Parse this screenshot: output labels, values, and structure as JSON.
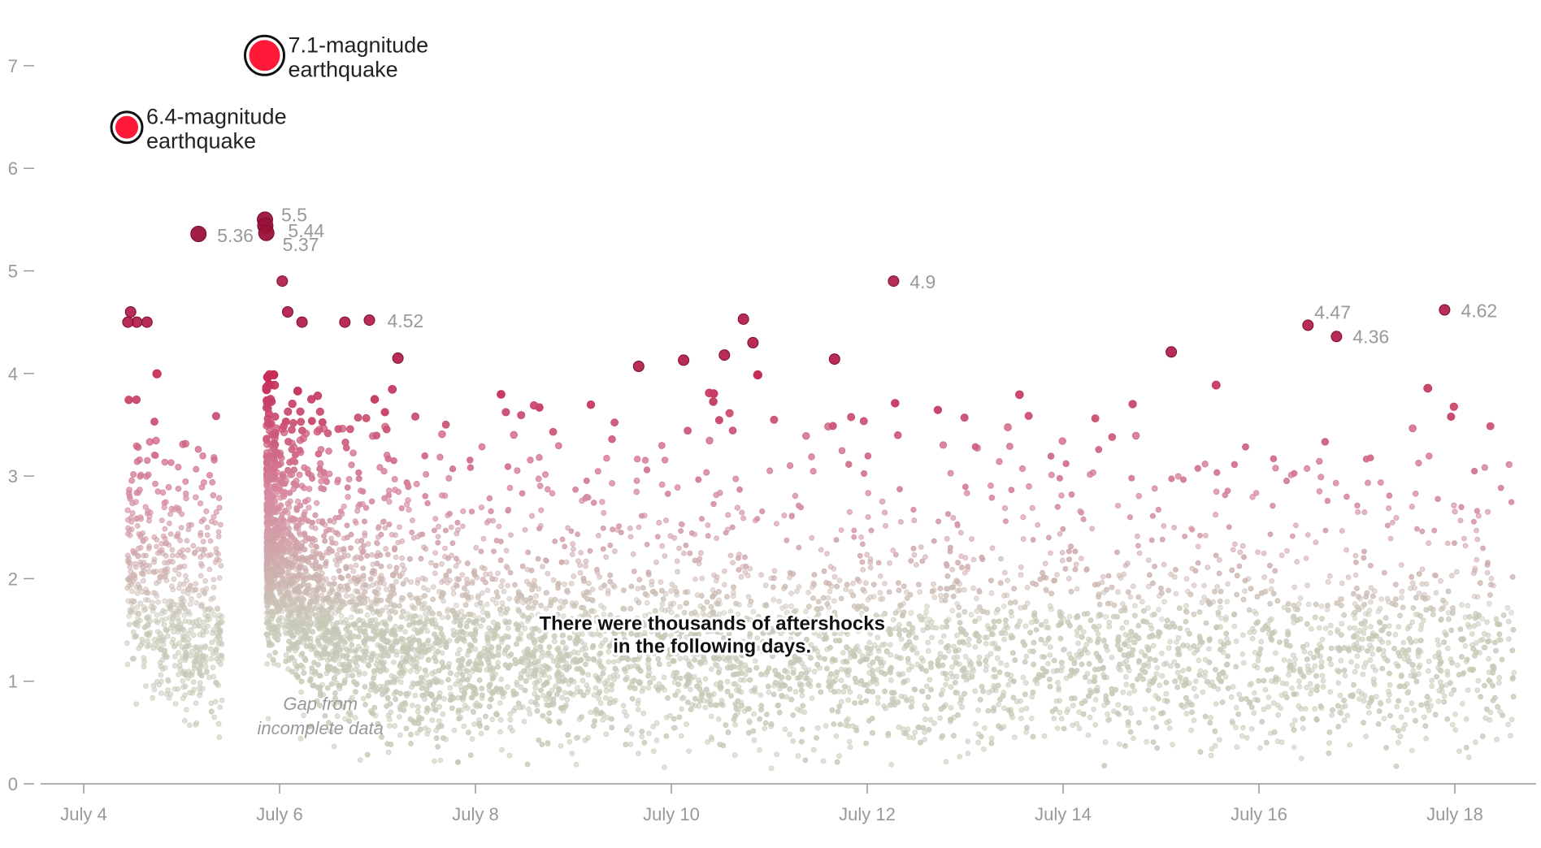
{
  "chart_data": {
    "type": "scatter",
    "title": "",
    "xlabel": "",
    "ylabel": "",
    "x_axis": {
      "min_date": "2019-07-03T20:00",
      "max_date": "2019-07-18T14:00",
      "ticks": [
        {
          "date": "2019-07-04",
          "label": "July 4"
        },
        {
          "date": "2019-07-06",
          "label": "July 6"
        },
        {
          "date": "2019-07-08",
          "label": "July 8"
        },
        {
          "date": "2019-07-10",
          "label": "July 10"
        },
        {
          "date": "2019-07-12",
          "label": "July 12"
        },
        {
          "date": "2019-07-14",
          "label": "July 14"
        },
        {
          "date": "2019-07-16",
          "label": "July 16"
        },
        {
          "date": "2019-07-18",
          "label": "July 18"
        }
      ]
    },
    "y_axis": {
      "min": 0,
      "max": 7,
      "ticks": [
        0,
        1,
        2,
        3,
        4,
        5,
        6,
        7
      ],
      "tick_labels": [
        "0",
        "1",
        "2",
        "3",
        "4",
        "5",
        "6",
        "7"
      ]
    },
    "color_scale": {
      "low": "#c9c9b8",
      "mid": "#d68aa0",
      "high": "#c42a55",
      "max": "#ff1a3a",
      "max_stroke": "#111111"
    },
    "main_shocks": [
      {
        "date": "2019-07-04T10:33",
        "magnitude": 6.4,
        "label_line1": "6.4-magnitude",
        "label_line2": "earthquake"
      },
      {
        "date": "2019-07-05T20:19",
        "magnitude": 7.1,
        "label_line1": "7.1-magnitude",
        "label_line2": "earthquake"
      }
    ],
    "labeled_aftershocks": [
      {
        "date": "2019-07-05T04:07",
        "magnitude": 5.36,
        "label": "5.36"
      },
      {
        "date": "2019-07-05T20:25",
        "magnitude": 5.5,
        "label": "5.5"
      },
      {
        "date": "2019-07-05T20:30",
        "magnitude": 5.44,
        "label": "5.44"
      },
      {
        "date": "2019-07-05T20:45",
        "magnitude": 5.37,
        "label": "5.37"
      },
      {
        "date": "2019-07-06T22:00",
        "magnitude": 4.52,
        "label": "4.52"
      },
      {
        "date": "2019-07-12T06:27",
        "magnitude": 4.9,
        "label": "4.9"
      },
      {
        "date": "2019-07-16T12:00",
        "magnitude": 4.47,
        "label": "4.47"
      },
      {
        "date": "2019-07-16T19:00",
        "magnitude": 4.36,
        "label": "4.36"
      },
      {
        "date": "2019-07-17T21:30",
        "magnitude": 4.62,
        "label": "4.62"
      }
    ],
    "other_notable_aftershocks": [
      {
        "date": "2019-07-04T11:30",
        "magnitude": 4.6
      },
      {
        "date": "2019-07-04T13:00",
        "magnitude": 4.5
      },
      {
        "date": "2019-07-04T10:50",
        "magnitude": 4.5
      },
      {
        "date": "2019-07-04T15:30",
        "magnitude": 4.5
      },
      {
        "date": "2019-07-06T00:40",
        "magnitude": 4.9
      },
      {
        "date": "2019-07-06T02:00",
        "magnitude": 4.6
      },
      {
        "date": "2019-07-06T05:30",
        "magnitude": 4.5
      },
      {
        "date": "2019-07-06T16:00",
        "magnitude": 4.5
      },
      {
        "date": "2019-07-10T17:40",
        "magnitude": 4.53
      },
      {
        "date": "2019-07-10T13:00",
        "magnitude": 4.18
      },
      {
        "date": "2019-07-10T20:00",
        "magnitude": 4.3
      },
      {
        "date": "2019-07-11T16:00",
        "magnitude": 4.14
      },
      {
        "date": "2019-07-10T03:00",
        "magnitude": 4.13
      },
      {
        "date": "2019-07-09T16:00",
        "magnitude": 4.07
      },
      {
        "date": "2019-07-07T05:00",
        "magnitude": 4.15
      },
      {
        "date": "2019-07-15T02:30",
        "magnitude": 4.21
      }
    ],
    "annotations": [
      {
        "id": "thousands",
        "line1": "There were thousands of aftershocks",
        "line2": "in the following days.",
        "date": "2019-07-10T10:00",
        "magnitude": 1.5
      },
      {
        "id": "gap",
        "line1": "Gap from",
        "line2": "incomplete data",
        "date": "2019-07-06T10:00",
        "magnitude": 0.72
      }
    ],
    "data_gap": {
      "start": "2019-07-05T10:00",
      "end": "2019-07-05T20:19"
    },
    "background_aftershocks": {
      "description_count_estimate": 9000,
      "magnitude_range": [
        0.2,
        3.9
      ]
    },
    "grid": false,
    "legend": "none"
  }
}
